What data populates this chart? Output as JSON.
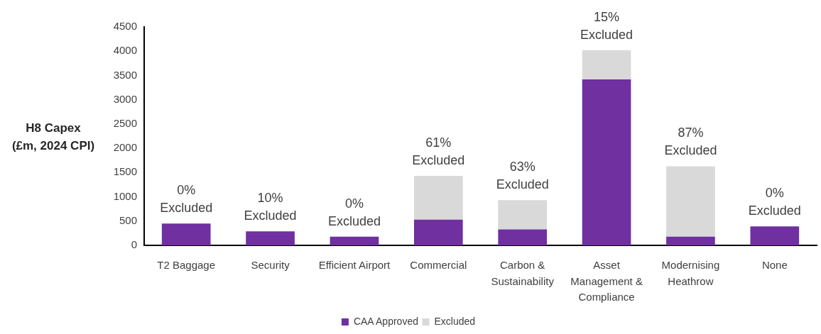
{
  "chart_data": {
    "type": "bar",
    "stacked": true,
    "ylabel": "H8 Capex (£m, 2024 CPI)",
    "categories": [
      "T2 Baggage",
      "Security",
      "Efficient Airport",
      "Commercial",
      "Carbon & Sustainability",
      "Asset Management & Compliance",
      "Modernising Heathrow",
      "None"
    ],
    "series": [
      {
        "name": "CAA Approved",
        "color": "#7030a0",
        "values": [
          450,
          290,
          180,
          530,
          330,
          3420,
          180,
          390
        ]
      },
      {
        "name": "Excluded",
        "color": "#d9d9d9",
        "values": [
          0,
          0,
          0,
          900,
          600,
          600,
          1450,
          0
        ]
      }
    ],
    "annotations": [
      {
        "text": "0% Excluded",
        "x": "T2 Baggage",
        "y": 450
      },
      {
        "text": "10% Excluded",
        "x": "Security",
        "y": 290
      },
      {
        "text": "0% Excluded",
        "x": "Efficient Airport",
        "y": 180
      },
      {
        "text": "61% Excluded",
        "x": "Commercial",
        "y": 1430
      },
      {
        "text": "63% Excluded",
        "x": "Carbon & Sustainability",
        "y": 930
      },
      {
        "text": "15% Excluded",
        "x": "Asset Management & Compliance",
        "y": 4020
      },
      {
        "text": "87% Excluded",
        "x": "Modernising Heathrow",
        "y": 1630
      },
      {
        "text": "0% Excluded",
        "x": "None",
        "y": 390
      }
    ],
    "ylim": [
      0,
      4500
    ],
    "yticks": [
      0,
      500,
      1000,
      1500,
      2000,
      2500,
      3000,
      3500,
      4000,
      4500
    ],
    "legend": "bottom"
  }
}
